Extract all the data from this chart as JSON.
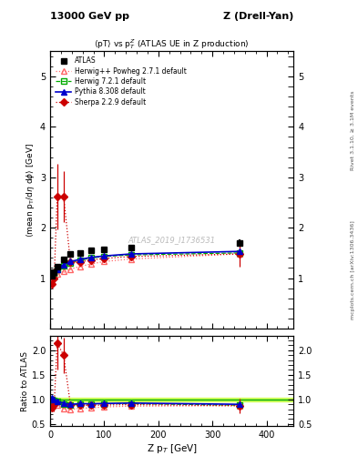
{
  "title_top_left": "13000 GeV pp",
  "title_top_right": "Z (Drell-Yan)",
  "main_title": "<pT> vs p$_T^Z$ (ATLAS UE in Z production)",
  "ylabel_main": "<mean p_T/dη dφ> [GeV]",
  "ylabel_ratio": "Ratio to ATLAS",
  "xlabel": "Z p$_T$ [GeV]",
  "right_label_top": "Rivet 3.1.10, ≥ 3.1M events",
  "right_label_bottom": "mcplots.cern.ch [arXiv:1306.3436]",
  "watermark": "ATLAS_2019_I1736531",
  "atlas_x": [
    2.5,
    7.5,
    13.0,
    25.0,
    37.5,
    55.0,
    75.0,
    100.0,
    150.0,
    350.0
  ],
  "atlas_y": [
    1.05,
    1.12,
    1.22,
    1.38,
    1.48,
    1.5,
    1.55,
    1.57,
    1.6,
    1.7
  ],
  "atlas_yerr": [
    0.03,
    0.03,
    0.03,
    0.05,
    0.05,
    0.04,
    0.04,
    0.04,
    0.05,
    0.07
  ],
  "herwigpp_x": [
    2.5,
    7.5,
    13.0,
    25.0,
    37.5,
    55.0,
    75.0,
    100.0,
    150.0,
    350.0
  ],
  "herwigpp_y": [
    1.0,
    1.04,
    1.08,
    1.13,
    1.18,
    1.23,
    1.28,
    1.33,
    1.38,
    1.48
  ],
  "herwigpp_yerr": [
    0.01,
    0.01,
    0.01,
    0.01,
    0.01,
    0.01,
    0.01,
    0.01,
    0.01,
    0.03
  ],
  "herwig_x": [
    2.5,
    7.5,
    13.0,
    25.0,
    37.5,
    55.0,
    75.0,
    100.0,
    150.0,
    350.0
  ],
  "herwig_y": [
    1.05,
    1.1,
    1.17,
    1.24,
    1.3,
    1.35,
    1.4,
    1.43,
    1.46,
    1.5
  ],
  "herwig_yerr": [
    0.01,
    0.01,
    0.01,
    0.01,
    0.01,
    0.01,
    0.01,
    0.01,
    0.01,
    0.03
  ],
  "pythia_x": [
    2.5,
    7.5,
    13.0,
    25.0,
    37.5,
    55.0,
    75.0,
    100.0,
    150.0,
    350.0
  ],
  "pythia_y": [
    1.08,
    1.12,
    1.18,
    1.27,
    1.33,
    1.37,
    1.41,
    1.44,
    1.48,
    1.53
  ],
  "pythia_yerr": [
    0.01,
    0.01,
    0.01,
    0.01,
    0.01,
    0.01,
    0.01,
    0.01,
    0.01,
    0.03
  ],
  "sherpa_x": [
    2.5,
    7.5,
    13.0,
    25.0,
    37.5,
    55.0,
    75.0,
    100.0,
    150.0,
    350.0
  ],
  "sherpa_y": [
    0.88,
    1.0,
    2.62,
    2.62,
    1.32,
    1.32,
    1.36,
    1.39,
    1.43,
    1.48
  ],
  "sherpa_yerr": [
    0.08,
    0.15,
    0.65,
    0.5,
    0.08,
    0.06,
    0.05,
    0.05,
    0.04,
    0.25
  ],
  "xlim": [
    0,
    450
  ],
  "ylim_main": [
    0.0,
    5.5
  ],
  "ylim_ratio": [
    0.45,
    2.3
  ],
  "color_atlas": "#000000",
  "color_herwigpp": "#ff6666",
  "color_herwig": "#00aa00",
  "color_pythia": "#0000cc",
  "color_sherpa": "#cc0000",
  "ratio_band_color": "#ccff44",
  "ratio_band_alpha": 0.8,
  "ratio_band_ymin": 0.96,
  "ratio_band_ymax": 1.04,
  "yticks_main": [
    1,
    2,
    3,
    4,
    5
  ],
  "yticks_ratio": [
    0.5,
    1.0,
    1.5,
    2.0
  ],
  "xticks": [
    0,
    100,
    200,
    300,
    400
  ]
}
